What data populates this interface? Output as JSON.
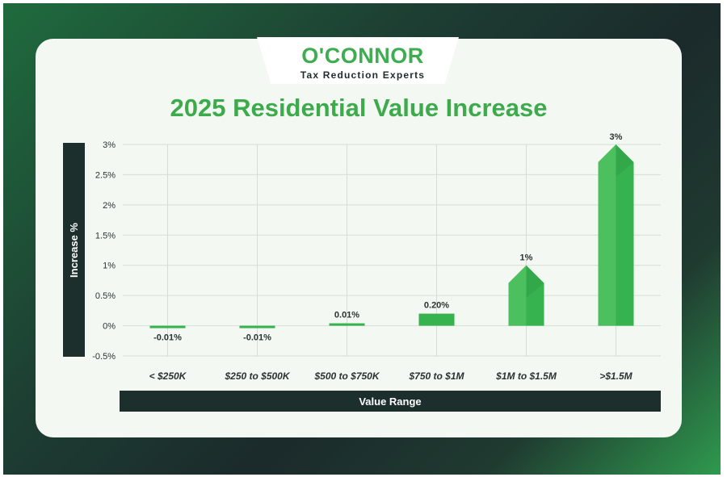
{
  "logo": {
    "name": "O'CONNOR",
    "tagline": "Tax Reduction Experts"
  },
  "colors": {
    "bar": "#36b24f",
    "bar_light": "#5fca6c",
    "bar_dark": "#2a9541",
    "axis_band": "#1c2f2c",
    "title": "#3daa4c"
  },
  "chart_data": {
    "type": "bar",
    "title": "2025 Residential Value Increase",
    "xlabel": "Value Range",
    "ylabel": "Increase %",
    "categories": [
      "< $250K",
      "$250 to $500K",
      "$500 to $750K",
      "$750 to $1M",
      "$1M to $1.5M",
      ">$1.5M"
    ],
    "values": [
      -0.01,
      -0.01,
      0.01,
      0.2,
      1,
      3
    ],
    "data_labels": [
      "-0.01%",
      "-0.01%",
      "0.01%",
      "0.20%",
      "1%",
      "3%"
    ],
    "ylim": [
      -0.5,
      3
    ],
    "yticks": [
      3,
      2.5,
      2,
      1.5,
      1,
      0.5,
      0,
      -0.5
    ],
    "ytick_labels": [
      "3%",
      "2.5%",
      "2%",
      "1.5%",
      "1%",
      "0.5%",
      "0%",
      "-0.5%"
    ],
    "grid": true,
    "legend": "none"
  }
}
